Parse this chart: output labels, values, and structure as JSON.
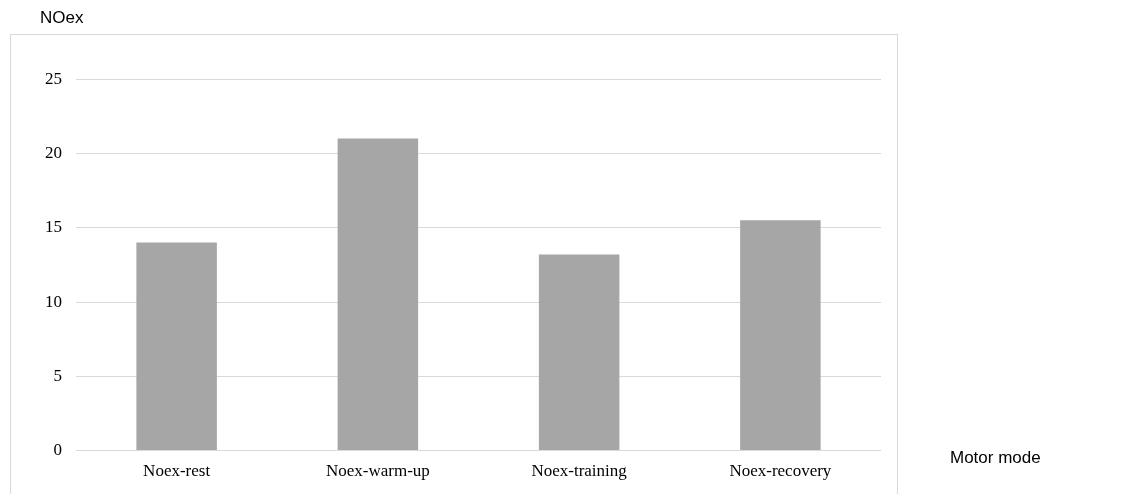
{
  "chart_data": {
    "type": "bar",
    "ylabel": "NOex",
    "xlabel": "Motor mode",
    "categories": [
      "Noex-rest",
      "Noex-warm-up",
      "Noex-training",
      "Noex-recovery"
    ],
    "values": [
      14,
      21,
      13.2,
      15.5
    ],
    "color": "#a6a6a6",
    "ylim": [
      0,
      25
    ],
    "yticks": [
      0,
      5,
      10,
      15,
      20,
      25
    ],
    "grid": "y",
    "legend": false
  }
}
